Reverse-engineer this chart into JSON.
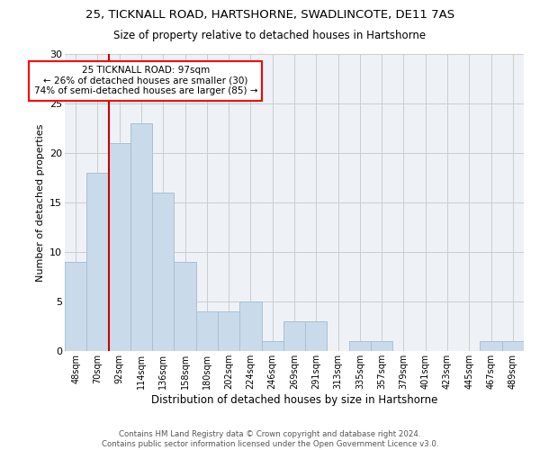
{
  "title1": "25, TICKNALL ROAD, HARTSHORNE, SWADLINCOTE, DE11 7AS",
  "title2": "Size of property relative to detached houses in Hartshorne",
  "xlabel": "Distribution of detached houses by size in Hartshorne",
  "ylabel": "Number of detached properties",
  "bar_labels": [
    "48sqm",
    "70sqm",
    "92sqm",
    "114sqm",
    "136sqm",
    "158sqm",
    "180sqm",
    "202sqm",
    "224sqm",
    "246sqm",
    "269sqm",
    "291sqm",
    "313sqm",
    "335sqm",
    "357sqm",
    "379sqm",
    "401sqm",
    "423sqm",
    "445sqm",
    "467sqm",
    "489sqm"
  ],
  "bar_values": [
    9,
    18,
    21,
    23,
    16,
    9,
    4,
    4,
    5,
    1,
    3,
    3,
    0,
    1,
    1,
    0,
    0,
    0,
    0,
    1,
    1
  ],
  "bar_color": "#c9daea",
  "bar_edge_color": "#a8c0d6",
  "red_line_color": "#cc0000",
  "annotation_line1": "25 TICKNALL ROAD: 97sqm",
  "annotation_line2": "← 26% of detached houses are smaller (30)",
  "annotation_line3": "74% of semi-detached houses are larger (85) →",
  "annotation_box_color": "white",
  "annotation_box_edge_color": "red",
  "ylim": [
    0,
    30
  ],
  "yticks": [
    0,
    5,
    10,
    15,
    20,
    25,
    30
  ],
  "grid_color": "#cccccc",
  "bg_color": "#eef2f7",
  "footnote_line1": "Contains HM Land Registry data © Crown copyright and database right 2024.",
  "footnote_line2": "Contains public sector information licensed under the Open Government Licence v3.0."
}
